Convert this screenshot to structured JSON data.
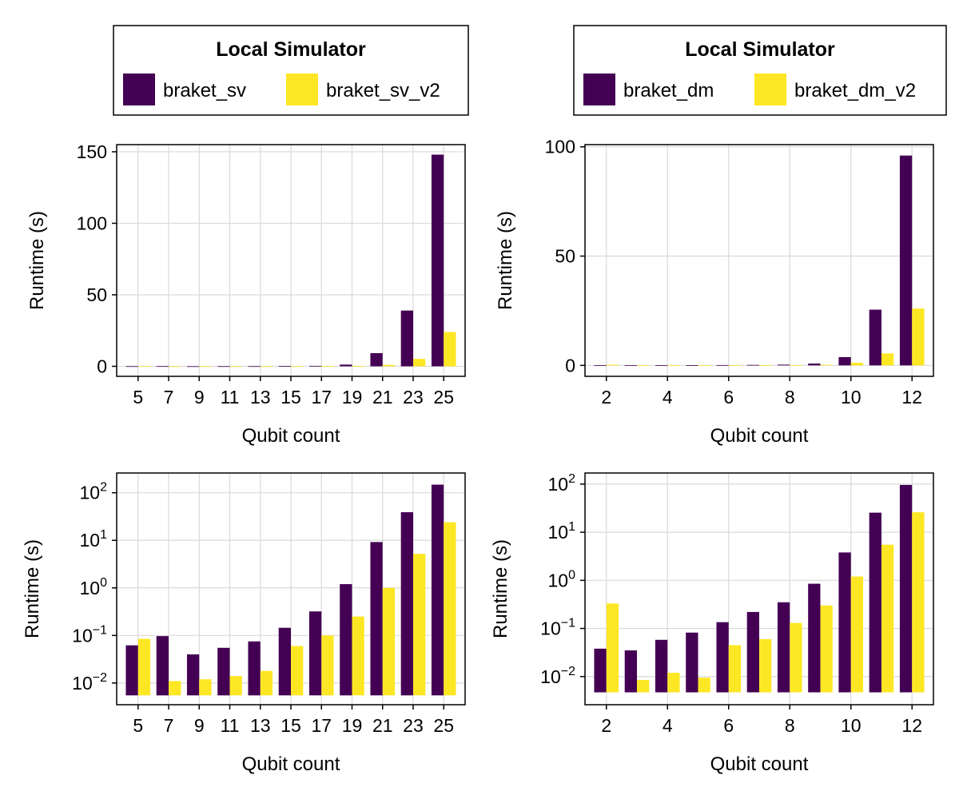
{
  "colors": {
    "v1": "#440154",
    "v2": "#fde725"
  },
  "legends": [
    {
      "title": "Local Simulator",
      "labels": [
        "braket_sv",
        "braket_sv_v2"
      ]
    },
    {
      "title": "Local Simulator",
      "labels": [
        "braket_dm",
        "braket_dm_v2"
      ]
    }
  ],
  "chart_data": [
    {
      "type": "bar",
      "scale": "linear",
      "xlabel": "Qubit count",
      "ylabel": "Runtime (s)",
      "categories": [
        5,
        7,
        9,
        11,
        13,
        15,
        17,
        19,
        21,
        23,
        25
      ],
      "ylim": [
        -7,
        155
      ],
      "yticks": [
        0,
        50,
        100,
        150
      ],
      "series": [
        {
          "name": "braket_sv",
          "values": [
            0.062,
            0.097,
            0.04,
            0.055,
            0.075,
            0.145,
            0.32,
            1.2,
            9.2,
            39,
            148
          ]
        },
        {
          "name": "braket_sv_v2",
          "values": [
            0.085,
            0.011,
            0.012,
            0.014,
            0.018,
            0.06,
            0.1,
            0.25,
            1.0,
            5.2,
            24
          ]
        }
      ]
    },
    {
      "type": "bar",
      "scale": "linear",
      "xlabel": "Qubit count",
      "ylabel": "Runtime (s)",
      "categories": [
        2,
        3,
        4,
        5,
        6,
        7,
        8,
        9,
        10,
        11,
        12
      ],
      "xticks": [
        2,
        4,
        6,
        8,
        10,
        12
      ],
      "ylim": [
        -5,
        101
      ],
      "yticks": [
        0,
        50,
        100
      ],
      "series": [
        {
          "name": "braket_dm",
          "values": [
            0.038,
            0.035,
            0.058,
            0.082,
            0.135,
            0.22,
            0.35,
            0.85,
            3.8,
            25.5,
            96
          ]
        },
        {
          "name": "braket_dm_v2",
          "values": [
            0.33,
            0.0085,
            0.012,
            0.0095,
            0.045,
            0.06,
            0.13,
            0.3,
            1.2,
            5.5,
            26
          ]
        }
      ]
    },
    {
      "type": "bar",
      "scale": "log",
      "xlabel": "Qubit count",
      "ylabel": "Runtime (s)",
      "categories": [
        5,
        7,
        9,
        11,
        13,
        15,
        17,
        19,
        21,
        23,
        25
      ],
      "ylim": [
        0.0035,
        260
      ],
      "bar_base": 0.0055,
      "yticks": [
        0.01,
        0.1,
        1,
        10,
        100
      ],
      "ytick_exponents": [
        "−2",
        "−1",
        "0",
        "1",
        "2"
      ],
      "series": [
        {
          "name": "braket_sv",
          "values": [
            0.062,
            0.097,
            0.04,
            0.055,
            0.075,
            0.145,
            0.32,
            1.2,
            9.2,
            39,
            148
          ]
        },
        {
          "name": "braket_sv_v2",
          "values": [
            0.085,
            0.011,
            0.012,
            0.014,
            0.018,
            0.06,
            0.1,
            0.25,
            1.0,
            5.2,
            24
          ]
        }
      ]
    },
    {
      "type": "bar",
      "scale": "log",
      "xlabel": "Qubit count",
      "ylabel": "Runtime (s)",
      "categories": [
        2,
        3,
        4,
        5,
        6,
        7,
        8,
        9,
        10,
        11,
        12
      ],
      "xticks": [
        2,
        4,
        6,
        8,
        10,
        12
      ],
      "ylim": [
        0.0026,
        170
      ],
      "bar_base": 0.0047,
      "yticks": [
        0.01,
        0.1,
        1,
        10,
        100
      ],
      "ytick_exponents": [
        "−2",
        "−1",
        "0",
        "1",
        "2"
      ],
      "series": [
        {
          "name": "braket_dm",
          "values": [
            0.038,
            0.035,
            0.058,
            0.082,
            0.135,
            0.22,
            0.35,
            0.85,
            3.8,
            25.5,
            96
          ]
        },
        {
          "name": "braket_dm_v2",
          "values": [
            0.33,
            0.0085,
            0.012,
            0.0095,
            0.045,
            0.06,
            0.13,
            0.3,
            1.2,
            5.5,
            26
          ]
        }
      ]
    }
  ]
}
